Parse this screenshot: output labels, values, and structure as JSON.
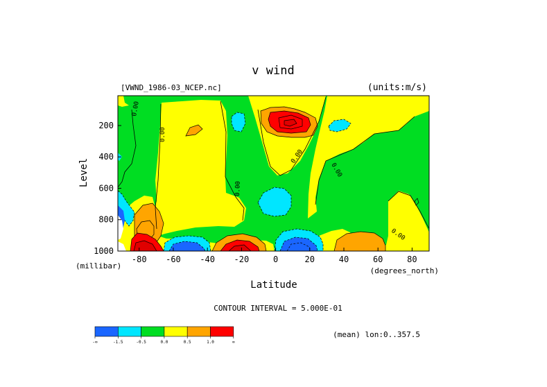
{
  "chart_data": {
    "type": "heatmap",
    "title": "v wind",
    "file_label": "[VWND_1986-03_NCEP.nc]",
    "units_label": "(units:m/s)",
    "xlabel": "Latitude",
    "x_units": "(degrees_north)",
    "ylabel": "Level",
    "y_units": "(millibar)",
    "xlim": [
      -92.5,
      90
    ],
    "ylim": [
      1000,
      10
    ],
    "x_ticks": [
      -80,
      -60,
      -40,
      -20,
      0,
      20,
      40,
      60,
      80
    ],
    "x_tick_labels": [
      "-80",
      "-60",
      "-40",
      "-20",
      "0",
      "20",
      "40",
      "60",
      "80"
    ],
    "y_ticks": [
      200,
      400,
      600,
      800,
      1000
    ],
    "y_tick_labels": [
      "200",
      "400",
      "600",
      "800",
      "1000"
    ],
    "contour_interval_text": "CONTOUR INTERVAL = 5.000E-01",
    "mean_text": "(mean) lon:0..357.5",
    "contour_labels": [
      "0.00",
      "0.00",
      "0.00",
      "0.00",
      "0.00",
      "0.00"
    ],
    "colorbar": {
      "colors": [
        "#1a66ff",
        "#00e6ff",
        "#00dd22",
        "#ffff00",
        "#ffa500",
        "#ff0000"
      ],
      "tick_labels": [
        "-∞",
        "-1.5",
        "-0.5",
        "0.0",
        "0.5",
        "1.0",
        "∞"
      ]
    },
    "colors": {
      "blue": "#1a66ff",
      "cyan": "#00e6ff",
      "green": "#00dd22",
      "yellow": "#ffff00",
      "orange": "#ffa500",
      "red": "#ff0000",
      "darkred": "#e00000"
    }
  }
}
